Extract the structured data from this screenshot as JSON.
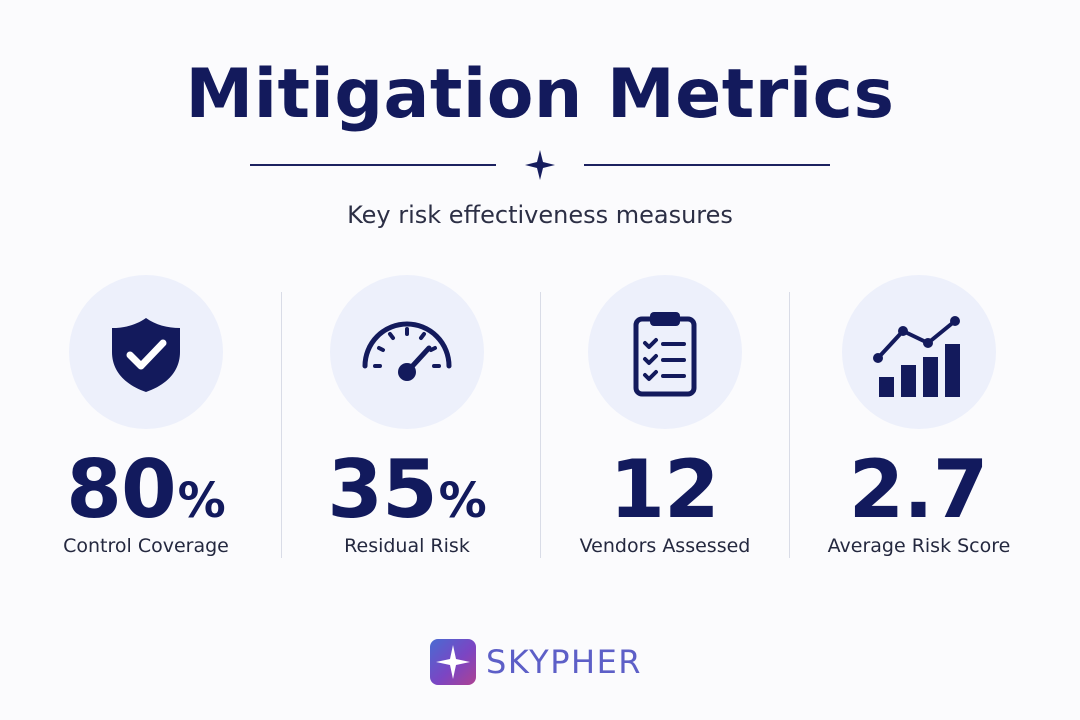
{
  "header": {
    "title": "Mitigation Metrics",
    "subtitle": "Key risk effectiveness measures",
    "divider_icon": "four-point-star-icon"
  },
  "metrics": [
    {
      "value": "80",
      "unit": "%",
      "label": "Control Coverage",
      "icon": "shield-check-icon"
    },
    {
      "value": "35",
      "unit": "%",
      "label": "Residual Risk",
      "icon": "speedometer-gauge-icon"
    },
    {
      "value": "12",
      "unit": "",
      "label": "Vendors Assessed",
      "icon": "clipboard-checklist-icon"
    },
    {
      "value": "2.7",
      "unit": "",
      "label": "Average Risk Score",
      "icon": "bar-line-chart-icon"
    }
  ],
  "brand": {
    "name": "SKYPHER",
    "logo_icon": "star-logo-icon"
  },
  "colors": {
    "primary": "#131a5c",
    "icon_circle": "#edf0fb",
    "background": "#fbfbfd",
    "brand_gradient_start": "#496bd2",
    "brand_gradient_end": "#ad4292"
  }
}
